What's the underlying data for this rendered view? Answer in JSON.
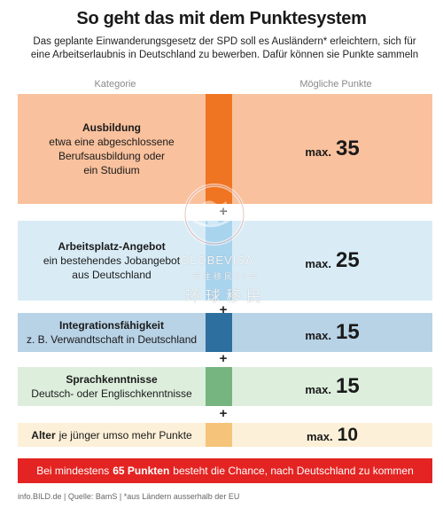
{
  "title": "So geht das mit dem Punktesystem",
  "subtitle": "Das geplante Einwanderungsgesetz der SPD soll es Ausländern* erleichtern, sich für eine Arbeitserlaubnis in Deutschland zu bewerben. Dafür können sie Punkte sammeln",
  "headers": {
    "category": "Kategorie",
    "points": "Mögliche Punkte"
  },
  "rows": [
    {
      "name": "Ausbildung",
      "desc1": "etwa eine abgeschlossene",
      "desc2": "Berufsausbildung oder",
      "desc3": "ein Studium",
      "max": "max.",
      "value": "35",
      "bg": "#f9c19d",
      "bar": "#f07522"
    },
    {
      "name": "Arbeitsplatz-Angebot",
      "desc1": "ein bestehendes Jobangebot",
      "desc2": "aus Deutschland",
      "max": "max.",
      "value": "25",
      "bg": "#d9ecf6",
      "bar": "#a9d4ee"
    },
    {
      "name": "Integrationsfähigkeit",
      "desc1": "z. B. Verwandtschaft in Deutschland",
      "max": "max.",
      "value": "15",
      "bg": "#b8d2e6",
      "bar": "#2d6f9e"
    },
    {
      "name": "Sprachkenntnisse",
      "desc1": "Deutsch- oder Englischkenntnisse",
      "max": "max.",
      "value": "15",
      "bg": "#ddeedd",
      "bar": "#76b580"
    },
    {
      "name": "Alter",
      "inline": "je jünger umso mehr Punkte",
      "max": "max.",
      "value": "10",
      "bg": "#fdf0d8",
      "bar": "#f5c47a"
    }
  ],
  "plus_sign": "+",
  "banner": {
    "pre": "Bei mindestens",
    "bold": "65 Punkten",
    "post": "besteht die Chance, nach Deutschland zu kommen"
  },
  "footer": "info.BILD.de | Quelle: BamS | *aus Ländern ausserhalb der EU",
  "watermark": {
    "en": "GLOBEVISA",
    "sub": "专注移民20年",
    "cn": "环球移民"
  }
}
